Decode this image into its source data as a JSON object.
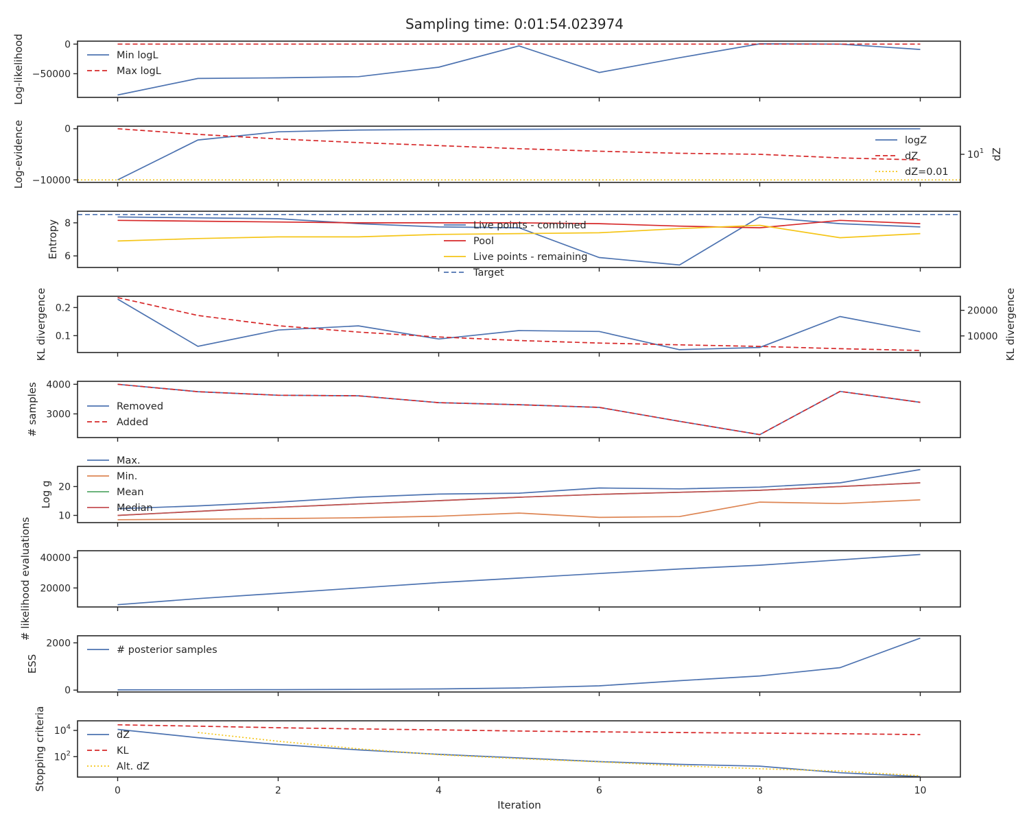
{
  "figure": {
    "title": "Sampling time: 0:01:54.023974",
    "xlabel": "Iteration",
    "x_ticks": [
      0,
      2,
      4,
      6,
      8,
      10
    ],
    "xlim": [
      -0.5,
      10.5
    ]
  },
  "colors": {
    "blue": "#4C72B0",
    "red": "#D62728",
    "yellow": "#F5C518",
    "orange": "#DD8452",
    "green": "#55A868",
    "brown": "#C44E52"
  },
  "chart_data": [
    {
      "id": "loglikelihood",
      "type": "line",
      "ylabel": "Log-likelihood",
      "ylim": [
        -90000,
        5000
      ],
      "yticks": [
        {
          "v": 0,
          "label": "0"
        },
        {
          "v": -50000,
          "label": "−50000"
        }
      ],
      "legend_position": "upper-left",
      "series": [
        {
          "name": "Min logL",
          "color": "blue",
          "style": "solid",
          "x": [
            0,
            1,
            2,
            3,
            4,
            5,
            6,
            7,
            8,
            9,
            10
          ],
          "y": [
            -86000,
            -58000,
            -57000,
            -55000,
            -39000,
            -3000,
            -48000,
            -23000,
            500,
            0,
            -9000
          ]
        },
        {
          "name": "Max logL",
          "color": "red",
          "style": "dashed",
          "x": [
            0,
            1,
            2,
            3,
            4,
            5,
            6,
            7,
            8,
            9,
            10
          ],
          "y": [
            0,
            0,
            0,
            0,
            0,
            0,
            0,
            0,
            0,
            0,
            0
          ]
        }
      ]
    },
    {
      "id": "logevidence",
      "type": "line",
      "ylabel": "Log-evidence",
      "ylabel_right": "dZ",
      "right_scale": "log",
      "ylim": [
        -10500,
        500
      ],
      "yticks": [
        {
          "v": 0,
          "label": "0"
        },
        {
          "v": -10000,
          "label": "−10000"
        }
      ],
      "yticks_right": [
        {
          "label": "10",
          "sup": "1"
        }
      ],
      "legend_position": "lower-right",
      "series": [
        {
          "name": "logZ",
          "color": "blue",
          "style": "solid",
          "x": [
            0,
            1,
            2,
            3,
            4,
            5,
            6,
            7,
            8,
            9,
            10
          ],
          "y": [
            -10000,
            -2200,
            -600,
            -250,
            -150,
            -100,
            -60,
            -40,
            -30,
            -20,
            -15
          ]
        },
        {
          "name": "dZ",
          "color": "red",
          "style": "dashed",
          "axis": "right",
          "x": [
            0,
            1,
            2,
            3,
            4,
            5,
            6,
            7,
            8,
            9,
            10
          ],
          "y": [
            0,
            -1100,
            -2000,
            -2700,
            -3300,
            -3900,
            -4400,
            -4800,
            -5000,
            -5700,
            -6100
          ]
        },
        {
          "name": "dZ=0.01",
          "color": "yellow",
          "style": "dotted",
          "x": [
            -0.5,
            10.5
          ],
          "y": [
            -10000,
            -10000
          ]
        }
      ]
    },
    {
      "id": "entropy",
      "type": "line",
      "ylabel": "Entropy",
      "ylim": [
        5.3,
        8.7
      ],
      "yticks": [
        {
          "v": 8,
          "label": "8"
        },
        {
          "v": 6,
          "label": "6"
        }
      ],
      "legend_position": "center",
      "series": [
        {
          "name": "Live points - combined",
          "color": "blue",
          "style": "solid",
          "x": [
            0,
            1,
            2,
            3,
            4,
            5,
            6,
            7,
            8,
            9,
            10
          ],
          "y": [
            8.35,
            8.3,
            8.25,
            7.95,
            7.75,
            7.7,
            5.9,
            5.45,
            8.35,
            7.95,
            7.75
          ]
        },
        {
          "name": "Pool",
          "color": "red",
          "style": "solid",
          "x": [
            0,
            1,
            2,
            3,
            4,
            5,
            6,
            7,
            8,
            9,
            10
          ],
          "y": [
            8.15,
            8.1,
            8.05,
            8.0,
            8.0,
            8.0,
            7.95,
            7.8,
            7.7,
            8.15,
            7.95
          ]
        },
        {
          "name": "Live points - remaining",
          "color": "yellow",
          "style": "solid",
          "x": [
            0,
            1,
            2,
            3,
            4,
            5,
            6,
            7,
            8,
            9,
            10
          ],
          "y": [
            6.9,
            7.05,
            7.15,
            7.15,
            7.3,
            7.35,
            7.4,
            7.65,
            7.85,
            7.1,
            7.35
          ]
        },
        {
          "name": "Target",
          "color": "blue",
          "style": "dashed",
          "x": [
            -0.5,
            10.5
          ],
          "y": [
            8.5,
            8.5
          ]
        }
      ]
    },
    {
      "id": "kl",
      "type": "line",
      "ylabel": "KL divergence",
      "ylabel_right": "KL divergence",
      "ylim": [
        0.04,
        0.24
      ],
      "ylim_right": [
        3500,
        25500
      ],
      "yticks": [
        {
          "v": 0.2,
          "label": "0.2"
        },
        {
          "v": 0.1,
          "label": "0.1"
        }
      ],
      "yticks_right": [
        {
          "v": 20000,
          "label": "20000"
        },
        {
          "v": 10000,
          "label": "10000"
        }
      ],
      "series": [
        {
          "name": "",
          "color": "blue",
          "style": "solid",
          "x": [
            0,
            1,
            2,
            3,
            4,
            5,
            6,
            7,
            8,
            9,
            10
          ],
          "y": [
            0.23,
            0.062,
            0.12,
            0.135,
            0.088,
            0.118,
            0.115,
            0.05,
            0.058,
            0.168,
            0.114
          ]
        },
        {
          "name": "",
          "color": "red",
          "style": "dashed",
          "axis": "right",
          "x": [
            0,
            1,
            2,
            3,
            4,
            5,
            6,
            7,
            8,
            9,
            10
          ],
          "y": [
            25000,
            18000,
            14000,
            11500,
            9600,
            8200,
            7200,
            6500,
            5900,
            5000,
            4300
          ]
        }
      ]
    },
    {
      "id": "samples",
      "type": "line",
      "ylabel": "# samples",
      "ylim": [
        2200,
        4100
      ],
      "yticks": [
        {
          "v": 4000,
          "label": "4000"
        },
        {
          "v": 3000,
          "label": "3000"
        }
      ],
      "legend_position": "center-left",
      "series": [
        {
          "name": "Removed",
          "color": "blue",
          "style": "solid",
          "x": [
            0,
            1,
            2,
            3,
            4,
            5,
            6,
            7,
            8,
            9,
            10
          ],
          "y": [
            4000,
            3750,
            3630,
            3610,
            3380,
            3310,
            3220,
            2750,
            2300,
            3760,
            3390
          ]
        },
        {
          "name": "Added",
          "color": "red",
          "style": "dashed",
          "x": [
            0,
            1,
            2,
            3,
            4,
            5,
            6,
            7,
            8,
            9,
            10
          ],
          "y": [
            4000,
            3750,
            3630,
            3610,
            3380,
            3310,
            3220,
            2750,
            2300,
            3760,
            3390
          ]
        }
      ]
    },
    {
      "id": "logg",
      "type": "line",
      "ylabel": "Log g",
      "ylim": [
        7.5,
        27
      ],
      "yticks": [
        {
          "v": 20,
          "label": "20"
        },
        {
          "v": 10,
          "label": "10"
        }
      ],
      "legend_position": "upper-left",
      "series": [
        {
          "name": "Max.",
          "color": "blue",
          "style": "solid",
          "x": [
            0,
            1,
            2,
            3,
            4,
            5,
            6,
            7,
            8,
            9,
            10
          ],
          "y": [
            12.3,
            13.3,
            14.6,
            16.3,
            17.4,
            17.7,
            19.5,
            19.2,
            19.8,
            21.3,
            25.9
          ]
        },
        {
          "name": "Min.",
          "color": "orange",
          "style": "solid",
          "x": [
            0,
            1,
            2,
            3,
            4,
            5,
            6,
            7,
            8,
            9,
            10
          ],
          "y": [
            8.5,
            8.7,
            8.9,
            9.2,
            9.7,
            10.8,
            9.3,
            9.6,
            14.6,
            14.1,
            15.4
          ]
        },
        {
          "name": "Mean",
          "color": "green",
          "style": "solid",
          "x": [
            0,
            1,
            2,
            3,
            4,
            5,
            6,
            7,
            8,
            9,
            10
          ],
          "y": [
            10.0,
            11.4,
            12.8,
            14.0,
            15.1,
            16.3,
            17.3,
            18.0,
            18.7,
            20.0,
            21.3
          ]
        },
        {
          "name": "Median",
          "color": "brown",
          "style": "solid",
          "x": [
            0,
            1,
            2,
            3,
            4,
            5,
            6,
            7,
            8,
            9,
            10
          ],
          "y": [
            10.0,
            11.4,
            12.8,
            14.0,
            15.1,
            16.3,
            17.3,
            18.0,
            18.7,
            20.0,
            21.3
          ]
        }
      ]
    },
    {
      "id": "likelihood_evals",
      "type": "line",
      "ylabel": "# likelihood evaluations",
      "ylim": [
        7500,
        44500
      ],
      "yticks": [
        {
          "v": 40000,
          "label": "40000"
        },
        {
          "v": 20000,
          "label": "20000"
        }
      ],
      "series": [
        {
          "name": "",
          "color": "blue",
          "style": "solid",
          "x": [
            0,
            1,
            2,
            3,
            4,
            5,
            6,
            7,
            8,
            9,
            10
          ],
          "y": [
            9000,
            13000,
            16500,
            20000,
            23500,
            26500,
            29500,
            32500,
            35000,
            38500,
            42000
          ]
        }
      ]
    },
    {
      "id": "ess",
      "type": "line",
      "ylabel": "ESS",
      "ylim": [
        -80,
        2300
      ],
      "yticks": [
        {
          "v": 2000,
          "label": "2000"
        },
        {
          "v": 0,
          "label": "0"
        }
      ],
      "legend_position": "upper-left",
      "series": [
        {
          "name": "# posterior samples",
          "color": "blue",
          "style": "solid",
          "x": [
            0,
            1,
            2,
            3,
            4,
            5,
            6,
            7,
            8,
            9,
            10
          ],
          "y": [
            10,
            12,
            20,
            30,
            50,
            90,
            180,
            400,
            600,
            950,
            2200
          ]
        }
      ]
    },
    {
      "id": "stopping",
      "type": "line",
      "ylabel": "Stopping criteria",
      "yscale": "log",
      "ylim": [
        2.8,
        54000
      ],
      "yticks": [
        {
          "v": 10000,
          "label": "10",
          "sup": "4"
        },
        {
          "v": 100,
          "label": "10",
          "sup": "2"
        }
      ],
      "legend_position": "upper-left",
      "series": [
        {
          "name": "dZ",
          "color": "blue",
          "style": "solid",
          "x": [
            0,
            1,
            2,
            3,
            4,
            5,
            6,
            7,
            8,
            9,
            10
          ],
          "y": [
            12000,
            2800,
            850,
            330,
            150,
            80,
            42,
            26,
            19,
            6,
            3
          ]
        },
        {
          "name": "KL",
          "color": "red",
          "style": "dashed",
          "x": [
            0,
            1,
            2,
            3,
            4,
            5,
            6,
            7,
            8,
            9,
            10
          ],
          "y": [
            27000,
            21000,
            16000,
            13000,
            11000,
            9000,
            7800,
            6900,
            6300,
            5600,
            4800
          ]
        },
        {
          "name": "Alt. dZ",
          "color": "yellow",
          "style": "dotted",
          "x": [
            1,
            2,
            3,
            4,
            5,
            6,
            7,
            8,
            9,
            10
          ],
          "y": [
            7000,
            1500,
            400,
            140,
            70,
            40,
            20,
            12,
            8,
            3.5
          ]
        }
      ]
    }
  ]
}
